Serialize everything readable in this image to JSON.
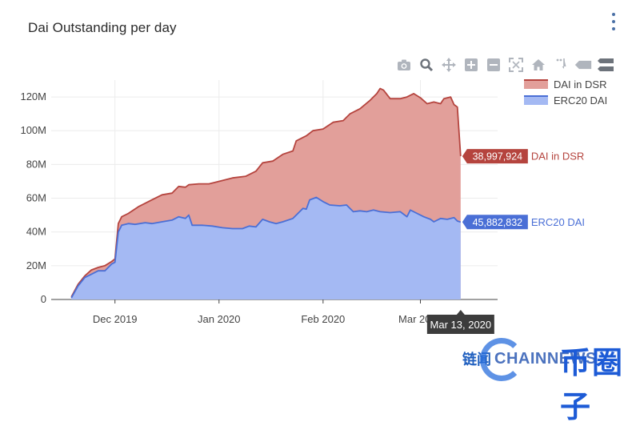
{
  "header": {
    "title": "Dai Outstanding per day"
  },
  "toolbar": {
    "icons": [
      "camera-icon",
      "zoom-icon",
      "pan-icon",
      "zoom-in-icon",
      "zoom-out-icon",
      "autoscale-icon",
      "reset-axes-icon",
      "spike-lines-icon",
      "hover-closest-icon",
      "hover-compare-icon"
    ]
  },
  "chart_data": {
    "type": "area",
    "title": "Dai Outstanding per day",
    "xlabel": "",
    "ylabel": "",
    "x_axis": {
      "type": "date",
      "range": [
        "2019-11-12",
        "2020-03-24"
      ],
      "ticks": [
        {
          "date": "2019-12-01",
          "label": "Dec 2019"
        },
        {
          "date": "2020-01-01",
          "label": "Jan 2020"
        },
        {
          "date": "2020-02-01",
          "label": "Feb 2020"
        },
        {
          "date": "2020-03-01",
          "label": "Mar 2020"
        }
      ]
    },
    "y_axis": {
      "range": [
        0,
        130000000
      ],
      "ticks": [
        {
          "value": 0,
          "label": "0"
        },
        {
          "value": 20000000,
          "label": "20M"
        },
        {
          "value": 40000000,
          "label": "40M"
        },
        {
          "value": 60000000,
          "label": "60M"
        },
        {
          "value": 80000000,
          "label": "80M"
        },
        {
          "value": 100000000,
          "label": "100M"
        },
        {
          "value": 120000000,
          "label": "120M"
        }
      ]
    },
    "grid": true,
    "stacked": true,
    "legend_position": "top-right",
    "hover": {
      "date_label": "Mar 13, 2020",
      "labels": [
        {
          "series": "DAI in DSR",
          "value_text": "38,997,924"
        },
        {
          "series": "ERC20 DAI",
          "value_text": "45,882,832"
        }
      ]
    },
    "series": [
      {
        "name": "ERC20 DAI",
        "color": "#4a6fd6",
        "fill": "#a4b9f3",
        "points": [
          [
            "2019-11-18",
            1000000
          ],
          [
            "2019-11-20",
            8000000
          ],
          [
            "2019-11-22",
            13000000
          ],
          [
            "2019-11-24",
            15000000
          ],
          [
            "2019-11-26",
            17000000
          ],
          [
            "2019-11-28",
            17000000
          ],
          [
            "2019-11-30",
            21000000
          ],
          [
            "2019-12-01",
            22000000
          ],
          [
            "2019-12-02",
            40000000
          ],
          [
            "2019-12-03",
            44000000
          ],
          [
            "2019-12-05",
            45000000
          ],
          [
            "2019-12-07",
            44500000
          ],
          [
            "2019-12-10",
            45500000
          ],
          [
            "2019-12-12",
            45000000
          ],
          [
            "2019-12-15",
            46000000
          ],
          [
            "2019-12-18",
            47000000
          ],
          [
            "2019-12-20",
            49000000
          ],
          [
            "2019-12-22",
            48000000
          ],
          [
            "2019-12-23",
            50000000
          ],
          [
            "2019-12-24",
            44000000
          ],
          [
            "2019-12-27",
            44000000
          ],
          [
            "2019-12-30",
            43500000
          ],
          [
            "2020-01-02",
            42500000
          ],
          [
            "2020-01-05",
            42000000
          ],
          [
            "2020-01-08",
            42000000
          ],
          [
            "2020-01-10",
            43500000
          ],
          [
            "2020-01-12",
            43000000
          ],
          [
            "2020-01-14",
            47500000
          ],
          [
            "2020-01-16",
            46000000
          ],
          [
            "2020-01-18",
            45000000
          ],
          [
            "2020-01-20",
            46000000
          ],
          [
            "2020-01-23",
            48000000
          ],
          [
            "2020-01-26",
            54000000
          ],
          [
            "2020-01-27",
            53500000
          ],
          [
            "2020-01-28",
            59000000
          ],
          [
            "2020-01-30",
            60500000
          ],
          [
            "2020-02-01",
            58000000
          ],
          [
            "2020-02-03",
            56000000
          ],
          [
            "2020-02-06",
            55500000
          ],
          [
            "2020-02-08",
            56000000
          ],
          [
            "2020-02-10",
            52000000
          ],
          [
            "2020-02-12",
            52500000
          ],
          [
            "2020-02-14",
            52000000
          ],
          [
            "2020-02-16",
            53000000
          ],
          [
            "2020-02-18",
            52000000
          ],
          [
            "2020-02-21",
            51500000
          ],
          [
            "2020-02-24",
            52000000
          ],
          [
            "2020-02-26",
            49000000
          ],
          [
            "2020-02-27",
            53000000
          ],
          [
            "2020-02-29",
            51000000
          ],
          [
            "2020-03-02",
            49000000
          ],
          [
            "2020-03-04",
            47500000
          ],
          [
            "2020-03-05",
            46000000
          ],
          [
            "2020-03-07",
            48000000
          ],
          [
            "2020-03-09",
            47500000
          ],
          [
            "2020-03-11",
            48500000
          ],
          [
            "2020-03-12",
            46500000
          ],
          [
            "2020-03-13",
            45882832
          ]
        ]
      },
      {
        "name": "DAI in DSR",
        "color": "#b5443e",
        "fill": "#e29f9a",
        "points": [
          [
            "2019-11-18",
            1500000
          ],
          [
            "2019-11-20",
            9000000
          ],
          [
            "2019-11-22",
            14000000
          ],
          [
            "2019-11-24",
            17500000
          ],
          [
            "2019-11-26",
            19000000
          ],
          [
            "2019-11-28",
            20000000
          ],
          [
            "2019-11-30",
            22500000
          ],
          [
            "2019-12-01",
            24000000
          ],
          [
            "2019-12-02",
            45000000
          ],
          [
            "2019-12-03",
            49000000
          ],
          [
            "2019-12-05",
            51000000
          ],
          [
            "2019-12-08",
            55000000
          ],
          [
            "2019-12-12",
            59000000
          ],
          [
            "2019-12-15",
            62000000
          ],
          [
            "2019-12-18",
            63000000
          ],
          [
            "2019-12-20",
            67000000
          ],
          [
            "2019-12-22",
            66500000
          ],
          [
            "2019-12-23",
            68000000
          ],
          [
            "2019-12-26",
            68500000
          ],
          [
            "2019-12-29",
            68500000
          ],
          [
            "2020-01-01",
            70000000
          ],
          [
            "2020-01-05",
            72000000
          ],
          [
            "2020-01-09",
            73000000
          ],
          [
            "2020-01-12",
            76000000
          ],
          [
            "2020-01-14",
            81000000
          ],
          [
            "2020-01-17",
            82000000
          ],
          [
            "2020-01-20",
            86000000
          ],
          [
            "2020-01-23",
            88000000
          ],
          [
            "2020-01-24",
            94000000
          ],
          [
            "2020-01-27",
            97000000
          ],
          [
            "2020-01-29",
            100000000
          ],
          [
            "2020-02-01",
            101000000
          ],
          [
            "2020-02-04",
            105000000
          ],
          [
            "2020-02-07",
            106000000
          ],
          [
            "2020-02-09",
            110000000
          ],
          [
            "2020-02-12",
            113000000
          ],
          [
            "2020-02-15",
            118000000
          ],
          [
            "2020-02-17",
            122000000
          ],
          [
            "2020-02-18",
            125000000
          ],
          [
            "2020-02-19",
            124000000
          ],
          [
            "2020-02-21",
            119000000
          ],
          [
            "2020-02-24",
            119000000
          ],
          [
            "2020-02-26",
            120000000
          ],
          [
            "2020-02-28",
            122000000
          ],
          [
            "2020-03-01",
            119500000
          ],
          [
            "2020-03-03",
            116000000
          ],
          [
            "2020-03-05",
            117000000
          ],
          [
            "2020-03-07",
            116000000
          ],
          [
            "2020-03-08",
            119000000
          ],
          [
            "2020-03-10",
            120000000
          ],
          [
            "2020-03-11",
            115500000
          ],
          [
            "2020-03-12",
            114000000
          ],
          [
            "2020-03-13",
            84880756
          ]
        ]
      }
    ]
  },
  "watermark": {
    "left_text": "链闻",
    "en_text": "CHAINNEWS",
    "right_text": "币圈子"
  }
}
